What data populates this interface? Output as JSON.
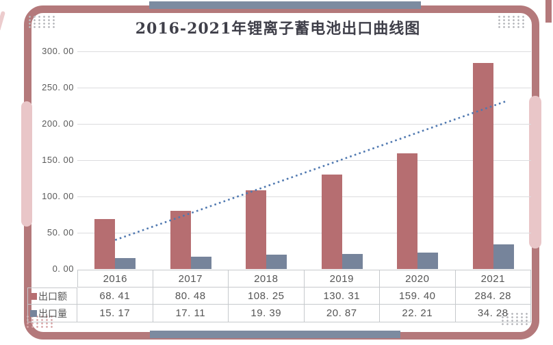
{
  "page": {
    "title": "2016-2021年锂离子蓄电池出口曲线图"
  },
  "colors": {
    "frame_rose": "#b4797b",
    "capsule_pink": "#e9c6c8",
    "accent_blue_gray": "#7c8ba0",
    "bar_export_value": "#b66e71",
    "bar_export_volume": "#76849b",
    "trendline_blue": "#4f78b0",
    "title_text": "#3f3f49",
    "axis_text": "#595959",
    "gridline": "#dcdcde",
    "table_border": "#c6c9cc",
    "dots_gray": "#b9babe",
    "dots_pink": "#d8a8aa"
  },
  "y_axis": {
    "tick_labels": [
      "300. 00",
      "250. 00",
      "200. 00",
      "150. 00",
      "100. 00",
      "50. 00",
      "0. 00"
    ],
    "tick_values": [
      300,
      250,
      200,
      150,
      100,
      50,
      0
    ]
  },
  "table": {
    "years": [
      "2016",
      "2017",
      "2018",
      "2019",
      "2020",
      "2021"
    ],
    "rows": [
      {
        "label": "出口额",
        "swatch_color": "#b66e71",
        "cells": [
          "68. 41",
          "80. 48",
          "108. 25",
          "130. 31",
          "159. 40",
          "284. 28"
        ]
      },
      {
        "label": "出口量",
        "swatch_color": "#76849b",
        "cells": [
          "15. 17",
          "17. 11",
          "19. 39",
          "20. 87",
          "22. 21",
          "34. 28"
        ]
      }
    ]
  },
  "chart_data": {
    "type": "bar",
    "title": "2016-2021年锂离子蓄电池出口曲线图",
    "categories": [
      "2016",
      "2017",
      "2018",
      "2019",
      "2020",
      "2021"
    ],
    "series": [
      {
        "name": "出口额",
        "color": "#b66e71",
        "values": [
          68.41,
          80.48,
          108.25,
          130.31,
          159.4,
          284.28
        ]
      },
      {
        "name": "出口量",
        "color": "#76849b",
        "values": [
          15.17,
          17.11,
          19.39,
          20.87,
          22.21,
          34.28
        ]
      }
    ],
    "trendline": {
      "series": "出口额",
      "style": "dotted-linear",
      "color": "#4f78b0",
      "approx_start_value": 40,
      "approx_end_value": 231
    },
    "ylim": [
      0,
      300
    ],
    "ytick_step": 50,
    "grid": true,
    "legend_position": "table-left"
  }
}
